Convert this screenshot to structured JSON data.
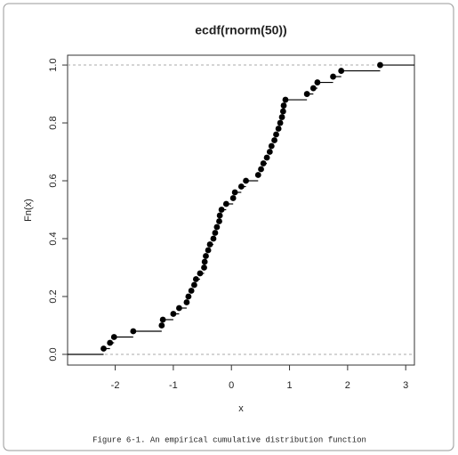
{
  "chart_data": {
    "type": "step",
    "title": "ecdf(rnorm(50))",
    "xlabel": "x",
    "ylabel": "Fn(x)",
    "x": [
      -2.2,
      -2.09,
      -2.02,
      -1.69,
      -1.2,
      -1.18,
      -1.0,
      -0.9,
      -0.77,
      -0.74,
      -0.69,
      -0.64,
      -0.61,
      -0.54,
      -0.47,
      -0.46,
      -0.44,
      -0.4,
      -0.37,
      -0.31,
      -0.28,
      -0.25,
      -0.21,
      -0.2,
      -0.17,
      -0.09,
      0.03,
      0.06,
      0.17,
      0.25,
      0.46,
      0.51,
      0.55,
      0.61,
      0.66,
      0.69,
      0.74,
      0.77,
      0.81,
      0.84,
      0.87,
      0.89,
      0.9,
      0.93,
      1.3,
      1.41,
      1.48,
      1.75,
      1.89,
      2.56
    ],
    "values": [
      0.02,
      0.04,
      0.06,
      0.08,
      0.1,
      0.12,
      0.14,
      0.16,
      0.18,
      0.2,
      0.22,
      0.24,
      0.26,
      0.28,
      0.3,
      0.32,
      0.34,
      0.36,
      0.38,
      0.4,
      0.42,
      0.44,
      0.46,
      0.48,
      0.5,
      0.52,
      0.54,
      0.56,
      0.58,
      0.6,
      0.62,
      0.64,
      0.66,
      0.68,
      0.7,
      0.72,
      0.74,
      0.76,
      0.78,
      0.8,
      0.82,
      0.84,
      0.86,
      0.88,
      0.9,
      0.92,
      0.94,
      0.96,
      0.98,
      1.0
    ],
    "color": "#000000",
    "xlim": [
      -2.82,
      3.15
    ],
    "ylim": [
      -0.037,
      1.034
    ],
    "xticks": [
      -2,
      -1,
      0,
      1,
      2,
      3
    ],
    "yticks": [
      {
        "value": 0,
        "label": "0.0"
      },
      0.2,
      0.4,
      0.6,
      0.8,
      {
        "value": 1,
        "label": "1.0"
      }
    ],
    "hlines": [
      0,
      1
    ]
  },
  "caption": "Figure 6-1. An empirical cumulative distribution function"
}
